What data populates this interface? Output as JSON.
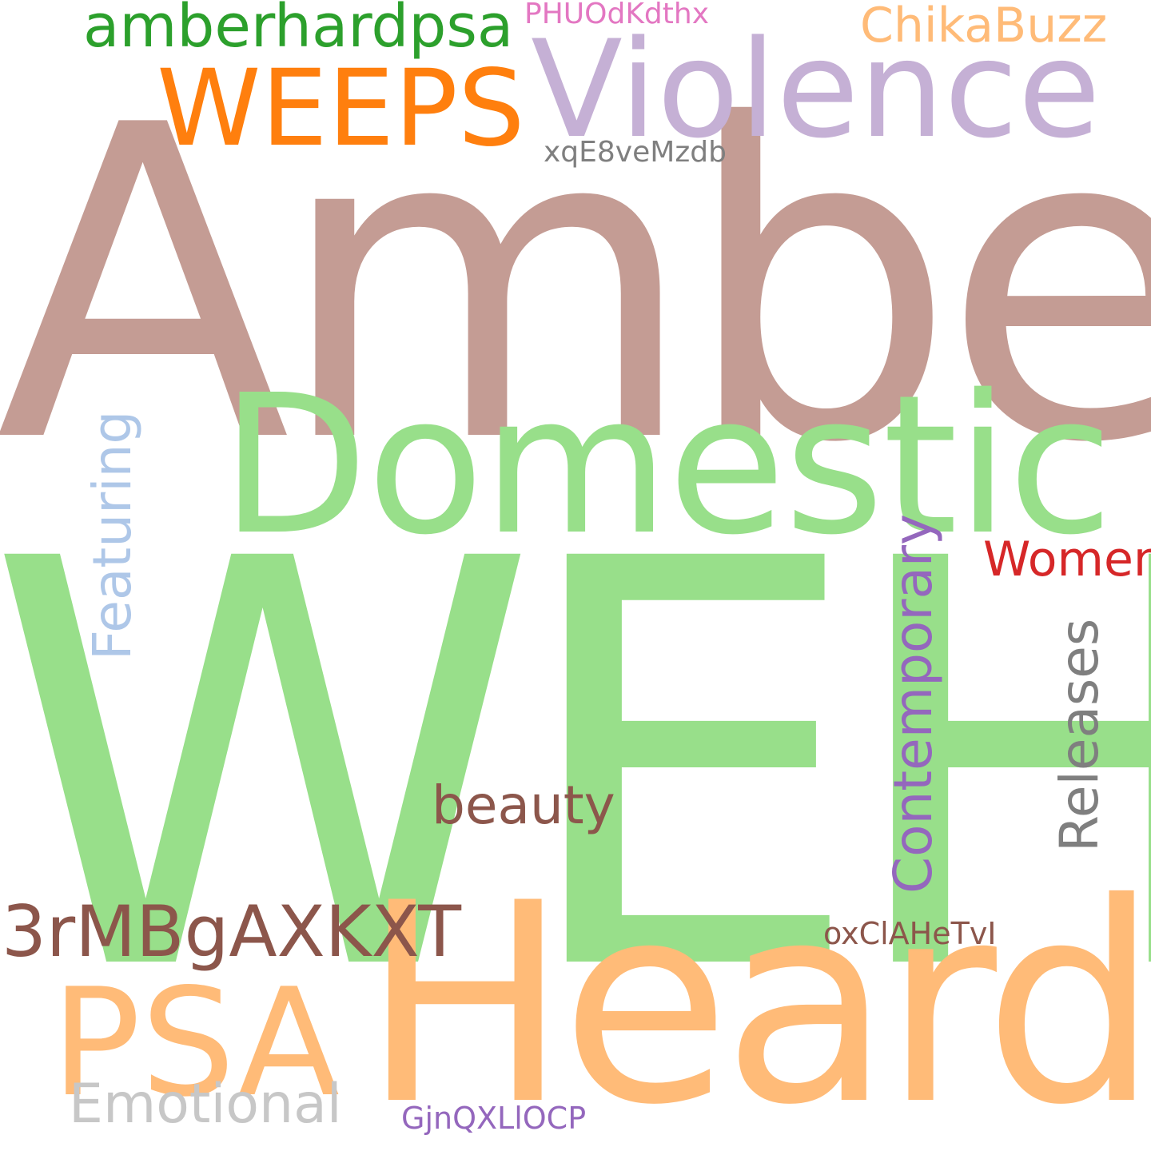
{
  "words": {
    "amber": {
      "text": "Amber",
      "color": "#c49c94"
    },
    "weh": {
      "text": "WEH",
      "color": "#98df8a"
    },
    "domestic": {
      "text": "Domestic",
      "color": "#98df8a"
    },
    "heard": {
      "text": "Heard",
      "color": "#ffbb78"
    },
    "violence": {
      "text": "Violence",
      "color": "#c5b0d5"
    },
    "weeps": {
      "text": "WEEPS",
      "color": "#ff7f0e"
    },
    "amberhardpsa": {
      "text": "amberhardpsa",
      "color": "#2ca02c"
    },
    "phu": {
      "text": "PHUOdKdthx",
      "color": "#e377c2"
    },
    "chika": {
      "text": "ChikaBuzz",
      "color": "#ffbb78"
    },
    "xqe": {
      "text": "xqE8veMzdb",
      "color": "#7f7f7f"
    },
    "women": {
      "text": "Women",
      "color": "#d62728"
    },
    "beauty": {
      "text": "beauty",
      "color": "#8c564b"
    },
    "threermb": {
      "text": "3rMBgAXKXT",
      "color": "#8c564b"
    },
    "oxc": {
      "text": "oxClAHeTvI",
      "color": "#8c564b"
    },
    "psa": {
      "text": "PSA",
      "color": "#ffbb78"
    },
    "emotional": {
      "text": "Emotional",
      "color": "#c7c7c7"
    },
    "gjn": {
      "text": "GjnQXLlOCP",
      "color": "#9467bd"
    },
    "featuring": {
      "text": "Featuring",
      "color": "#aec7e8"
    },
    "contemporary": {
      "text": "Contemporary",
      "color": "#9467bd"
    },
    "releases": {
      "text": "Releases",
      "color": "#7f7f7f"
    }
  }
}
